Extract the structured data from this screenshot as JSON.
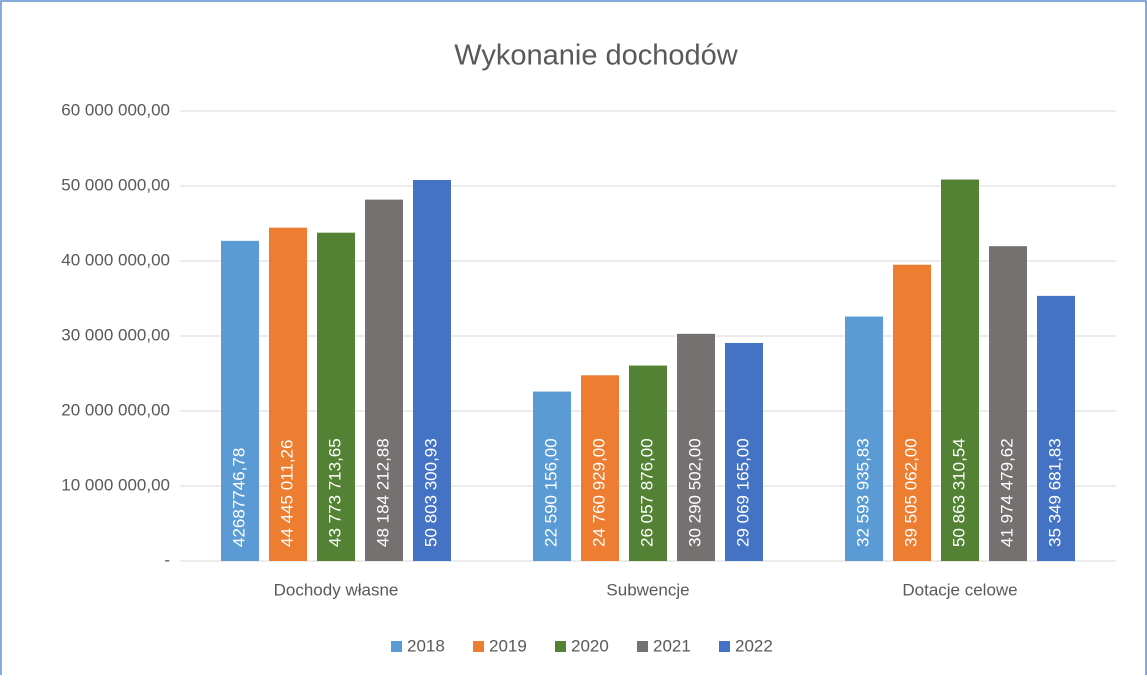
{
  "chart_data": {
    "type": "bar",
    "title": "Wykonanie dochodów",
    "categories": [
      "Dochody własne",
      "Subwencje",
      "Dotacje celowe"
    ],
    "series": [
      {
        "name": "2018",
        "color": "#5b9bd5",
        "values": [
          42687746.78,
          22590156.0,
          32593935.83
        ],
        "value_labels": [
          "42687746,78",
          "22 590 156,00",
          "32 593 935,83"
        ]
      },
      {
        "name": "2019",
        "color": "#ed7d31",
        "values": [
          44445011.26,
          24760929.0,
          39505062.0
        ],
        "value_labels": [
          "44 445 011,26",
          "24 760 929,00",
          "39 505 062,00"
        ]
      },
      {
        "name": "2020",
        "color": "#548235",
        "values": [
          43773713.65,
          26057876.0,
          50863310.54
        ],
        "value_labels": [
          "43 773 713,65",
          "26 057 876,00",
          "50 863 310,54"
        ]
      },
      {
        "name": "2021",
        "color": "#767171",
        "values": [
          48184212.88,
          30290502.0,
          41974479.62
        ],
        "value_labels": [
          "48 184 212,88",
          "30 290 502,00",
          "41 974 479,62"
        ]
      },
      {
        "name": "2022",
        "color": "#4472c4",
        "values": [
          50803300.93,
          29069165.0,
          35349681.83
        ],
        "value_labels": [
          "50 803 300,93",
          "29 069 165,00",
          "35 349 681,83"
        ]
      }
    ],
    "ylim": [
      0,
      60000000
    ],
    "yticks": [
      {
        "value": 0,
        "label": "-"
      },
      {
        "value": 10000000,
        "label": "10 000 000,00"
      },
      {
        "value": 20000000,
        "label": "20 000 000,00"
      },
      {
        "value": 30000000,
        "label": "30 000 000,00"
      },
      {
        "value": 40000000,
        "label": "40 000 000,00"
      },
      {
        "value": 50000000,
        "label": "50 000 000,00"
      },
      {
        "value": 60000000,
        "label": "60 000 000,00"
      }
    ],
    "grid": true,
    "legend": "bottom"
  }
}
